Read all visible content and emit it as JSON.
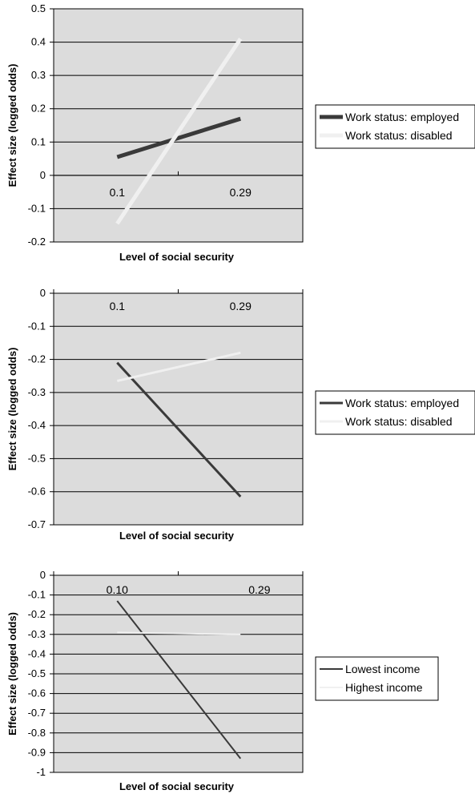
{
  "chart_data": [
    {
      "type": "line",
      "categories": [
        "0.1",
        "0.29"
      ],
      "series": [
        {
          "name": "Work status: employed",
          "values": [
            0.055,
            0.17
          ],
          "color": "#3a3a3a"
        },
        {
          "name": "Work status: disabled",
          "values": [
            -0.145,
            0.41
          ],
          "color": "#f0f0f0"
        }
      ],
      "xlabel": "Level of social security",
      "ylabel": "Effect size (logged odds)",
      "ylim": [
        -0.2,
        0.5
      ],
      "yticks": [
        "-0.2",
        "-0.1",
        "0",
        "0.1",
        "0.2",
        "0.3",
        "0.4",
        "0.5"
      ],
      "grid": true,
      "legend": "right"
    },
    {
      "type": "line",
      "categories": [
        "0.1",
        "0.29"
      ],
      "series": [
        {
          "name": "Work status: employed",
          "values": [
            -0.21,
            -0.615
          ],
          "color": "#3a3a3a"
        },
        {
          "name": "Work status: disabled",
          "values": [
            -0.265,
            -0.18
          ],
          "color": "#f0f0f0"
        }
      ],
      "xlabel": "Level of social security",
      "ylabel": "Effect size (logged odds)",
      "ylim": [
        -0.7,
        0
      ],
      "yticks": [
        "-0.7",
        "-0.6",
        "-0.5",
        "-0.4",
        "-0.3",
        "-0.2",
        "-0.1",
        "0"
      ],
      "grid": true,
      "legend": "right"
    },
    {
      "type": "line",
      "categories": [
        "0.10",
        "0.29"
      ],
      "series": [
        {
          "name": "Lowest income",
          "values": [
            -0.13,
            -0.93
          ],
          "color": "#3a3a3a"
        },
        {
          "name": "Highest income",
          "values": [
            -0.29,
            -0.3
          ],
          "color": "#f0f0f0"
        }
      ],
      "xlabel": "Level of social security",
      "ylabel": "Effect size (logged odds)",
      "ylim": [
        -1,
        0
      ],
      "yticks": [
        "-1",
        "-0.9",
        "-0.8",
        "-0.7",
        "-0.6",
        "-0.5",
        "-0.4",
        "-0.3",
        "-0.2",
        "-0.1",
        "0"
      ],
      "grid": true,
      "legend": "right"
    }
  ]
}
